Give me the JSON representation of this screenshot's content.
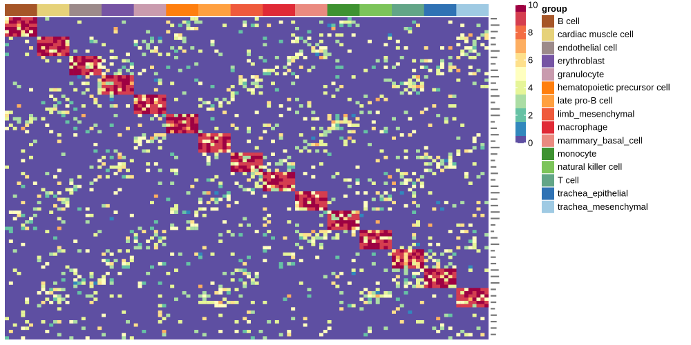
{
  "chart_data": {
    "type": "heatmap",
    "title": "",
    "xlabel": "",
    "ylabel": "",
    "groups": [
      {
        "name": "B cell",
        "color": "#A65628"
      },
      {
        "name": "cardiac muscle cell",
        "color": "#E6D27A"
      },
      {
        "name": "endothelial cell",
        "color": "#9C8A8A"
      },
      {
        "name": "erythroblast",
        "color": "#7654A4"
      },
      {
        "name": "granulocyte",
        "color": "#C99BAE"
      },
      {
        "name": "hematopoietic precursor cell",
        "color": "#FF7F0E"
      },
      {
        "name": "late pro-B cell",
        "color": "#FFA040"
      },
      {
        "name": "limb_mesenchymal",
        "color": "#EF5A3C"
      },
      {
        "name": "macrophage",
        "color": "#E02A36"
      },
      {
        "name": "mammary_basal_cell",
        "color": "#EA8A80"
      },
      {
        "name": "monocyte",
        "color": "#3E9231"
      },
      {
        "name": "natural killer cell",
        "color": "#7CC45A"
      },
      {
        "name": "T cell",
        "color": "#62A587"
      },
      {
        "name": "trachea_epithelial",
        "color": "#2F72B4"
      },
      {
        "name": "trachea_mesenchymal",
        "color": "#9FCAE3"
      }
    ],
    "legend_title": "group",
    "color_scale": {
      "min": 0,
      "max": 10,
      "ticks": [
        "10",
        "8",
        "6",
        "4",
        "2",
        "0"
      ],
      "palette": [
        "#5E4FA2",
        "#3288BD",
        "#66C2A5",
        "#ABDDA4",
        "#E6F598",
        "#FFFFBF",
        "#FEE08B",
        "#FDAE61",
        "#F46D43",
        "#D53E4F",
        "#9E0142"
      ]
    },
    "grid": false,
    "legend_position": "right",
    "row_count": 100,
    "columns_per_group": 8,
    "rows_per_group": 6,
    "background_value": 0,
    "block_value": 9,
    "cross_group_value": 4
  }
}
